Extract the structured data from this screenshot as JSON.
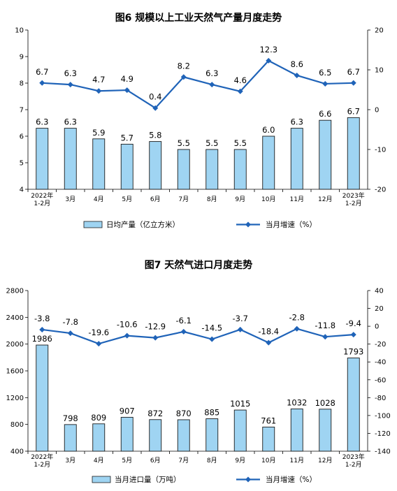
{
  "chart_data": [
    {
      "type": "bar+line",
      "title": "图6  规模以上工业天然气产量月度走势",
      "categories": [
        "2022年\n1-2月",
        "3月",
        "4月",
        "5月",
        "6月",
        "7月",
        "8月",
        "9月",
        "10月",
        "11月",
        "12月",
        "2023年\n1-2月"
      ],
      "series": [
        {
          "name": "日均产量（亿立方米",
          "type": "bar",
          "axis": "left",
          "color": "#9fd4f2",
          "values": [
            6.3,
            6.3,
            5.9,
            5.7,
            5.8,
            5.5,
            5.5,
            5.5,
            6.0,
            6.3,
            6.6,
            6.7
          ],
          "labels": [
            "6.3",
            "6.3",
            "5.9",
            "5.7",
            "5.8",
            "5.5",
            "5.5",
            "5.5",
            "6.0",
            "6.3",
            "6.6",
            "6.7"
          ]
        },
        {
          "name": "当月增速（%",
          "type": "line",
          "axis": "right",
          "color": "#1f63b8",
          "values": [
            6.7,
            6.3,
            4.7,
            4.9,
            0.4,
            8.2,
            6.3,
            4.6,
            12.3,
            8.6,
            6.5,
            6.7
          ],
          "labels": [
            "6.7",
            "6.3",
            "4.7",
            "4.9",
            "0.4",
            "8.2",
            "6.3",
            "4.6",
            "12.3",
            "8.6",
            "6.5",
            "6.7"
          ]
        }
      ],
      "y_left": {
        "min": 4,
        "max": 10,
        "ticks": [
          4,
          5,
          6,
          7,
          8,
          9,
          10
        ]
      },
      "y_right": {
        "min": -20,
        "max": 20,
        "ticks": [
          -20,
          -10,
          0,
          10,
          20
        ]
      },
      "legend_position": "bottom",
      "grid": false
    },
    {
      "type": "bar+line",
      "title": "图7  天然气进口月度走势",
      "categories": [
        "2022年\n1-2月",
        "3月",
        "4月",
        "5月",
        "6月",
        "7月",
        "8月",
        "9月",
        "10月",
        "11月",
        "12月",
        "2023年\n1-2月"
      ],
      "series": [
        {
          "name": "当月进口量（万吨",
          "type": "bar",
          "axis": "left",
          "color": "#9fd4f2",
          "values": [
            1986,
            798,
            809,
            907,
            872,
            870,
            885,
            1015,
            761,
            1032,
            1028,
            1793
          ],
          "labels": [
            "1986",
            "798",
            "809",
            "907",
            "872",
            "870",
            "885",
            "1015",
            "761",
            "1032",
            "1028",
            "1793"
          ]
        },
        {
          "name": "当月增速（%",
          "type": "line",
          "axis": "right",
          "color": "#1f63b8",
          "values": [
            -3.8,
            -7.8,
            -19.6,
            -10.6,
            -12.9,
            -6.1,
            -14.5,
            -3.7,
            -18.4,
            -2.8,
            -11.8,
            -9.4
          ],
          "labels": [
            "-3.8",
            "-7.8",
            "-19.6",
            "-10.6",
            "-12.9",
            "-6.1",
            "-14.5",
            "-3.7",
            "-18.4",
            "-2.8",
            "-11.8",
            "-9.4"
          ]
        }
      ],
      "y_left": {
        "min": 400,
        "max": 2800,
        "ticks": [
          400,
          800,
          1200,
          1600,
          2000,
          2400,
          2800
        ]
      },
      "y_right": {
        "min": -140,
        "max": 40,
        "ticks": [
          -140,
          -120,
          -100,
          -80,
          -60,
          -40,
          -20,
          0,
          20,
          40
        ]
      },
      "legend_position": "bottom",
      "grid": false
    }
  ],
  "legend_suffix": "）"
}
